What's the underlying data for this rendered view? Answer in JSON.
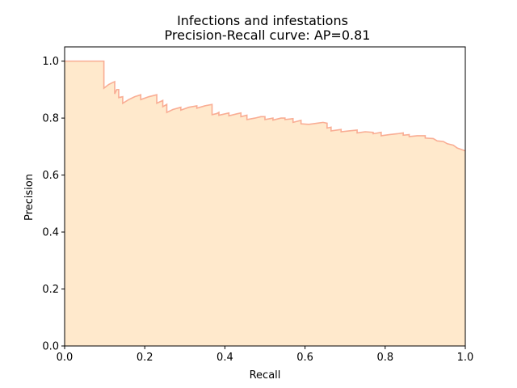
{
  "chart_data": {
    "type": "area",
    "title": "Infections and infestations",
    "subtitle": "Precision-Recall curve: AP=0.81",
    "xlabel": "Recall",
    "ylabel": "Precision",
    "xlim": [
      0,
      1
    ],
    "ylim": [
      0,
      1.05
    ],
    "xticks": [
      "0.0",
      "0.2",
      "0.4",
      "0.6",
      "0.8",
      "1.0"
    ],
    "yticks": [
      "0.0",
      "0.2",
      "0.4",
      "0.6",
      "0.8",
      "1.0"
    ],
    "grid": false,
    "colors": {
      "fill": "#ffe9cc",
      "line": "#f9ad94"
    },
    "series": [
      {
        "points": [
          [
            0.0,
            1.0
          ],
          [
            0.098,
            1.0
          ],
          [
            0.098,
            0.905
          ],
          [
            0.11,
            0.918
          ],
          [
            0.12,
            0.925
          ],
          [
            0.125,
            0.928
          ],
          [
            0.125,
            0.885
          ],
          [
            0.13,
            0.9
          ],
          [
            0.135,
            0.9
          ],
          [
            0.135,
            0.872
          ],
          [
            0.145,
            0.875
          ],
          [
            0.145,
            0.852
          ],
          [
            0.16,
            0.865
          ],
          [
            0.175,
            0.875
          ],
          [
            0.19,
            0.882
          ],
          [
            0.19,
            0.865
          ],
          [
            0.21,
            0.875
          ],
          [
            0.23,
            0.882
          ],
          [
            0.23,
            0.852
          ],
          [
            0.245,
            0.862
          ],
          [
            0.245,
            0.84
          ],
          [
            0.255,
            0.848
          ],
          [
            0.255,
            0.82
          ],
          [
            0.27,
            0.83
          ],
          [
            0.29,
            0.838
          ],
          [
            0.29,
            0.828
          ],
          [
            0.31,
            0.838
          ],
          [
            0.33,
            0.843
          ],
          [
            0.33,
            0.835
          ],
          [
            0.35,
            0.843
          ],
          [
            0.368,
            0.848
          ],
          [
            0.368,
            0.812
          ],
          [
            0.38,
            0.816
          ],
          [
            0.385,
            0.82
          ],
          [
            0.385,
            0.81
          ],
          [
            0.41,
            0.818
          ],
          [
            0.41,
            0.808
          ],
          [
            0.43,
            0.815
          ],
          [
            0.44,
            0.818
          ],
          [
            0.44,
            0.805
          ],
          [
            0.455,
            0.81
          ],
          [
            0.455,
            0.795
          ],
          [
            0.475,
            0.8
          ],
          [
            0.49,
            0.805
          ],
          [
            0.5,
            0.805
          ],
          [
            0.5,
            0.795
          ],
          [
            0.52,
            0.8
          ],
          [
            0.52,
            0.793
          ],
          [
            0.54,
            0.8
          ],
          [
            0.55,
            0.8
          ],
          [
            0.55,
            0.795
          ],
          [
            0.57,
            0.798
          ],
          [
            0.57,
            0.785
          ],
          [
            0.59,
            0.792
          ],
          [
            0.59,
            0.78
          ],
          [
            0.61,
            0.778
          ],
          [
            0.63,
            0.782
          ],
          [
            0.645,
            0.785
          ],
          [
            0.655,
            0.782
          ],
          [
            0.655,
            0.765
          ],
          [
            0.665,
            0.768
          ],
          [
            0.665,
            0.755
          ],
          [
            0.69,
            0.76
          ],
          [
            0.69,
            0.752
          ],
          [
            0.71,
            0.755
          ],
          [
            0.73,
            0.758
          ],
          [
            0.73,
            0.748
          ],
          [
            0.75,
            0.752
          ],
          [
            0.77,
            0.75
          ],
          [
            0.77,
            0.745
          ],
          [
            0.79,
            0.75
          ],
          [
            0.79,
            0.738
          ],
          [
            0.81,
            0.742
          ],
          [
            0.83,
            0.745
          ],
          [
            0.845,
            0.748
          ],
          [
            0.845,
            0.74
          ],
          [
            0.86,
            0.742
          ],
          [
            0.86,
            0.735
          ],
          [
            0.88,
            0.738
          ],
          [
            0.9,
            0.738
          ],
          [
            0.9,
            0.73
          ],
          [
            0.92,
            0.728
          ],
          [
            0.93,
            0.72
          ],
          [
            0.945,
            0.718
          ],
          [
            0.955,
            0.71
          ],
          [
            0.97,
            0.705
          ],
          [
            0.98,
            0.695
          ],
          [
            0.99,
            0.69
          ],
          [
            1.0,
            0.685
          ]
        ]
      }
    ]
  }
}
